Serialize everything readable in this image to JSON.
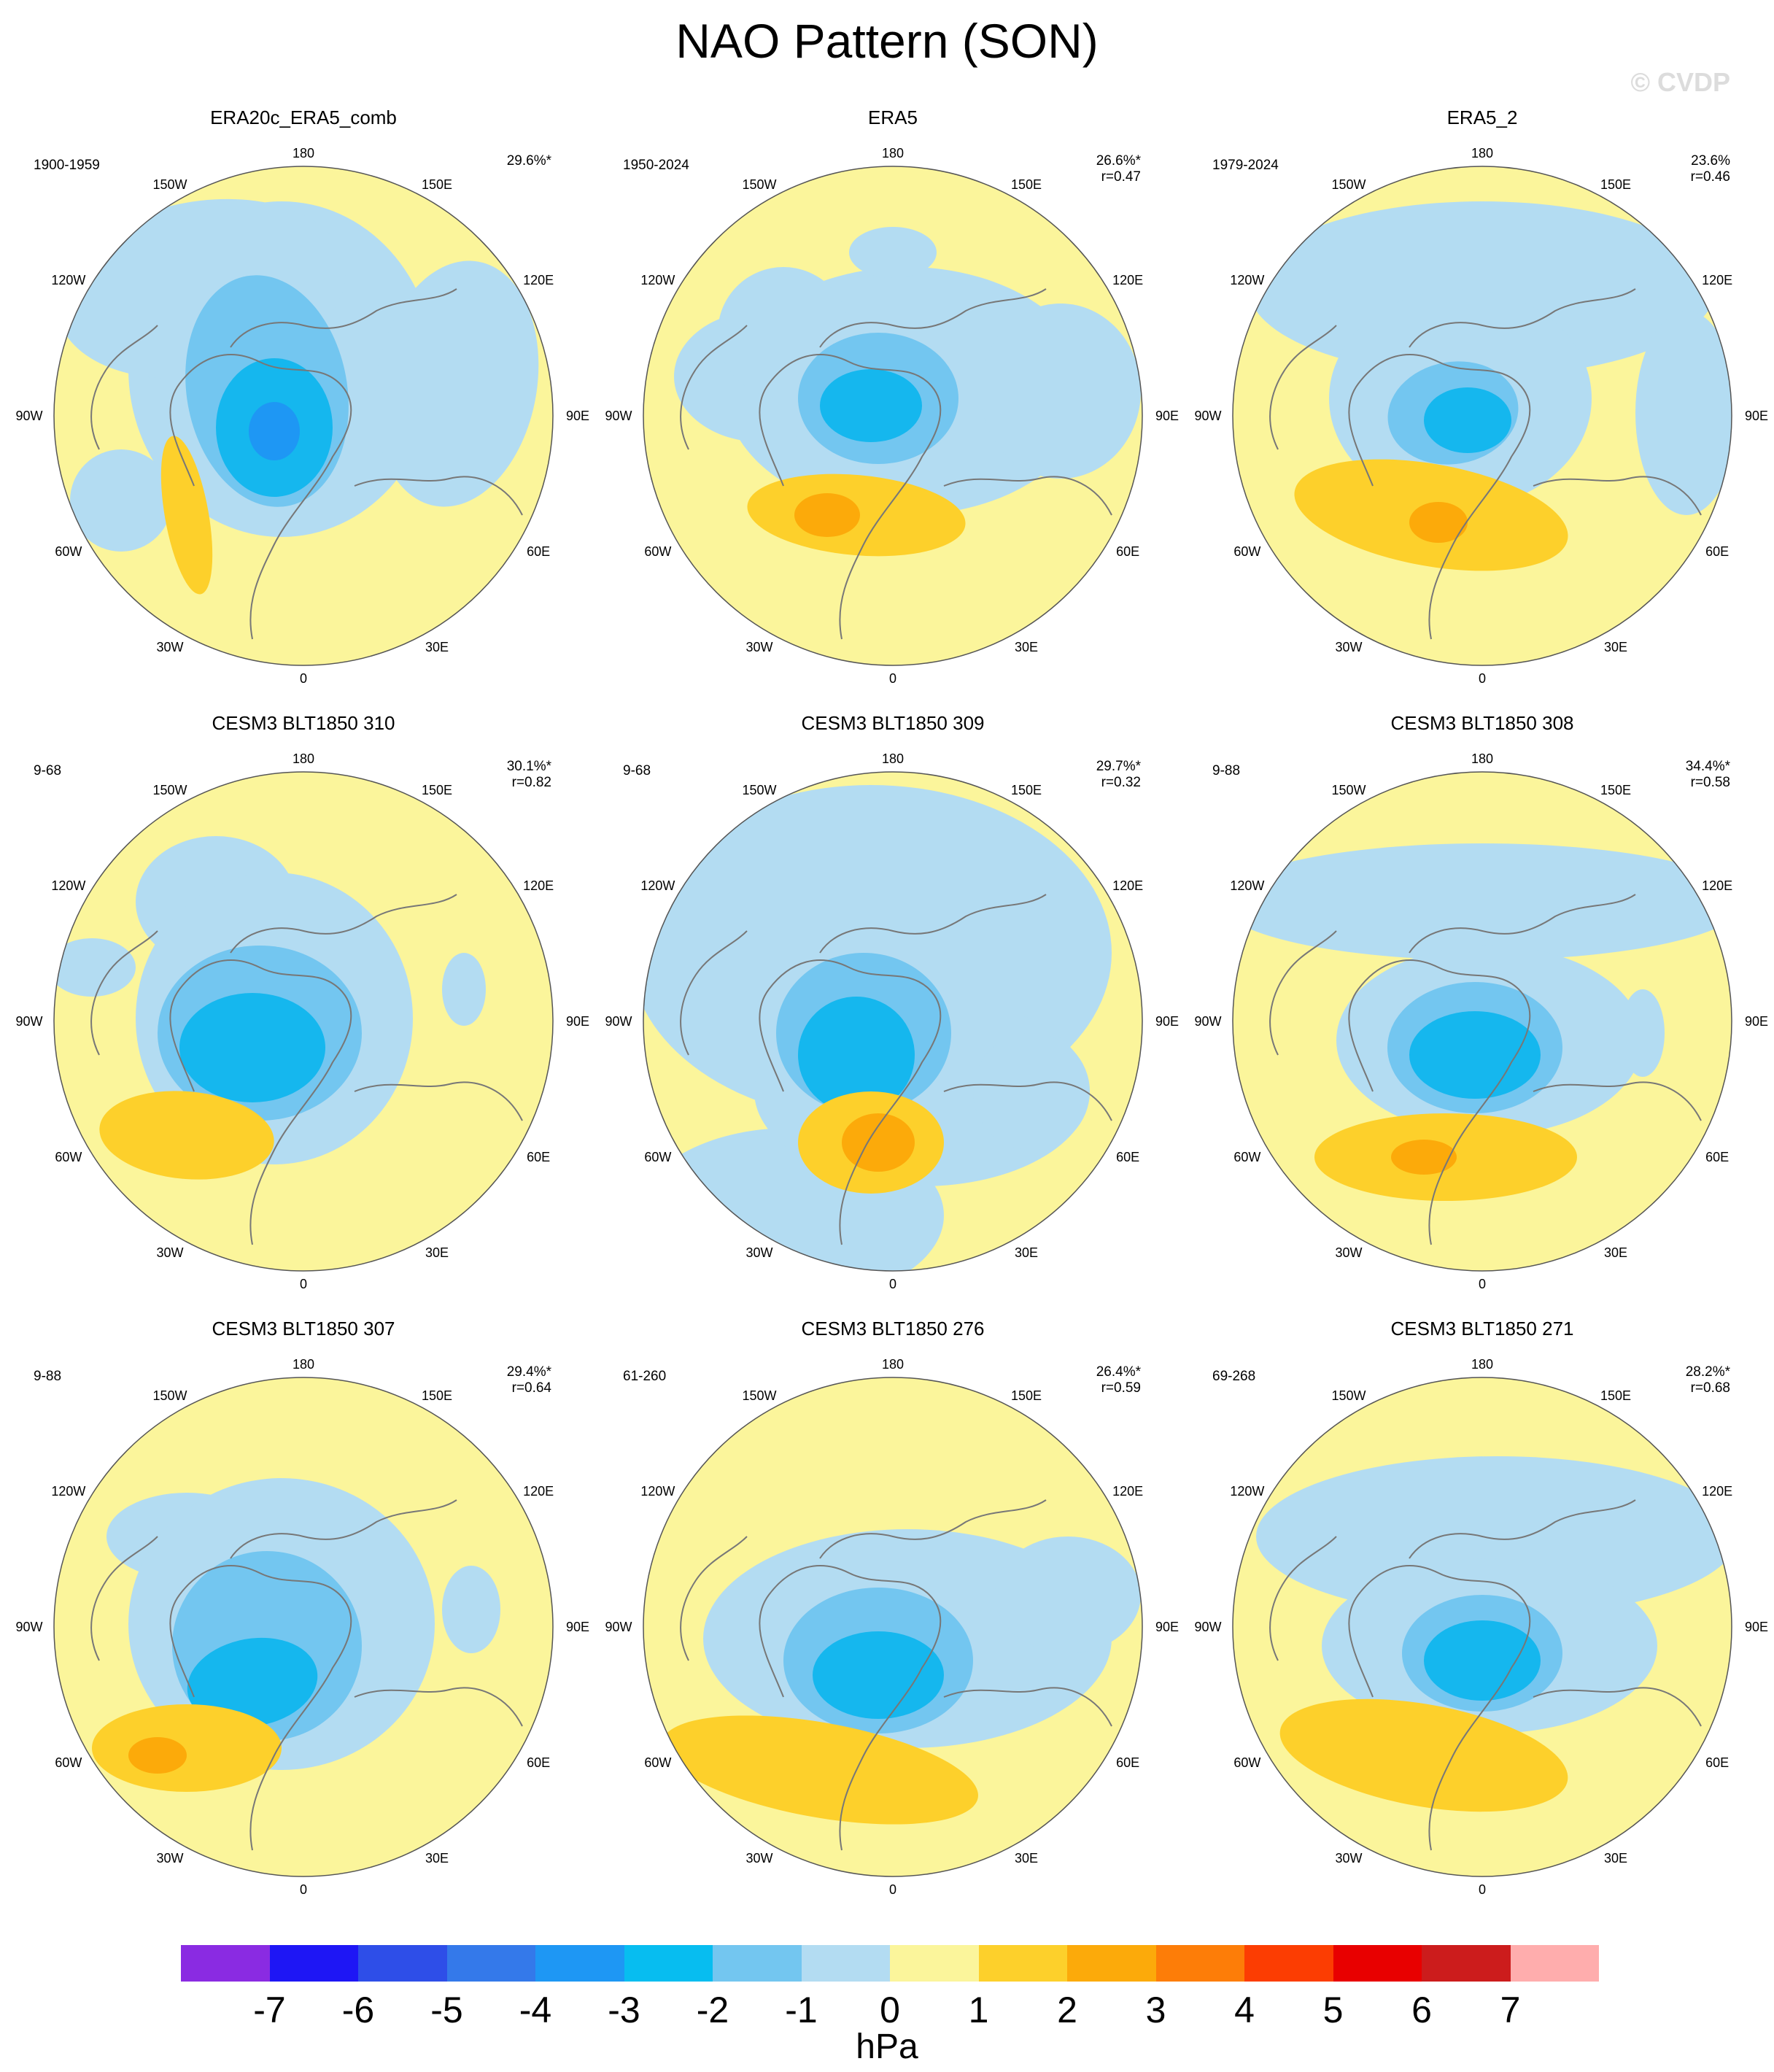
{
  "title": "NAO Pattern (SON)",
  "copyright": "© CVDP",
  "longitude_labels": [
    "180",
    "150E",
    "120E",
    "90E",
    "60E",
    "30E",
    "0",
    "30W",
    "60W",
    "90W",
    "120W",
    "150W"
  ],
  "colors": {
    "ocean_fill": "#fbf59b",
    "land_outline": "#777777",
    "neg1": "#b3dcf2",
    "neg2": "#73c6f0",
    "neg3": "#15b7ee",
    "neg4": "#1e97f4",
    "pos1": "#fbf59b",
    "pos2": "#fdd02b",
    "pos3": "#fcaa0a"
  },
  "panels": [
    {
      "title": "ERA20c_ERA5_comb",
      "period": "1900-1959",
      "variance": "29.6%*",
      "correlation": ""
    },
    {
      "title": "ERA5",
      "period": "1950-2024",
      "variance": "26.6%*",
      "correlation": "r=0.47"
    },
    {
      "title": "ERA5_2",
      "period": "1979-2024",
      "variance": "23.6%",
      "correlation": "r=0.46"
    },
    {
      "title": "CESM3 BLT1850 310",
      "period": "9-68",
      "variance": "30.1%*",
      "correlation": "r=0.82"
    },
    {
      "title": "CESM3 BLT1850 309",
      "period": "9-68",
      "variance": "29.7%*",
      "correlation": "r=0.32"
    },
    {
      "title": "CESM3 BLT1850 308",
      "period": "9-88",
      "variance": "34.4%*",
      "correlation": "r=0.58"
    },
    {
      "title": "CESM3 BLT1850 307",
      "period": "9-88",
      "variance": "29.4%*",
      "correlation": "r=0.64"
    },
    {
      "title": "CESM3 BLT1850 276",
      "period": "61-260",
      "variance": "26.4%*",
      "correlation": "r=0.59"
    },
    {
      "title": "CESM3 BLT1850 271",
      "period": "69-268",
      "variance": "28.2%*",
      "correlation": "r=0.68"
    }
  ],
  "colorbar": {
    "unit": "hPa",
    "labels": [
      "-7",
      "-6",
      "-5",
      "-4",
      "-3",
      "-2",
      "-1",
      "0",
      "1",
      "2",
      "3",
      "4",
      "5",
      "6",
      "7"
    ],
    "colors": [
      "#8a2be2",
      "#1e16f5",
      "#2e4ee8",
      "#3479ea",
      "#1e97f4",
      "#07bdf0",
      "#73c6f0",
      "#b3dcf2",
      "#fbf59b",
      "#fdd02b",
      "#fcaa0a",
      "#fd7d08",
      "#fc3d02",
      "#e80000",
      "#cc1c1c",
      "#ffadad"
    ]
  }
}
